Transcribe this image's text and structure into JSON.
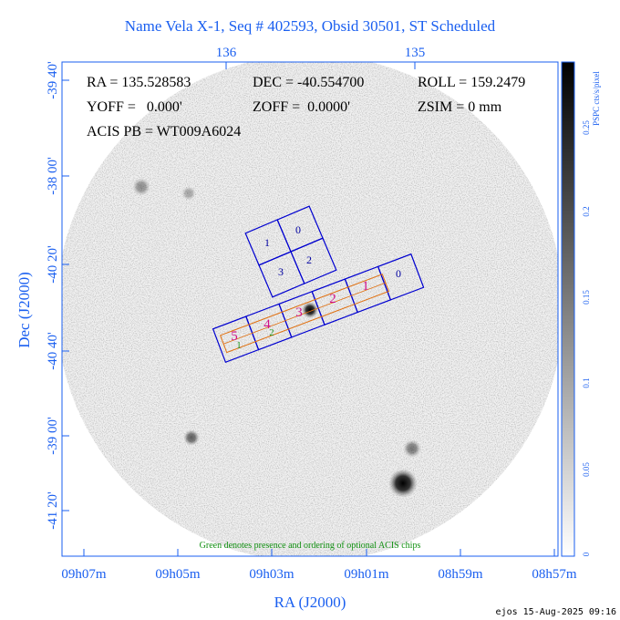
{
  "title": "Name Vela X-1, Seq # 402593, Obsid 30501, ST Scheduled",
  "top_axis": {
    "ticks": [
      "136",
      "135"
    ]
  },
  "left_axis": {
    "label": "Dec (J2000)",
    "ticks": [
      "-39 40'",
      "-38 00'",
      "-40 20'",
      "-40 40'",
      "-39 00'",
      "-41 20'"
    ]
  },
  "bottom_axis": {
    "label": "RA (J2000)",
    "ticks": [
      "09h07m",
      "09h05m",
      "09h03m",
      "09h01m",
      "08h59m",
      "08h57m"
    ]
  },
  "info": {
    "ra": "RA = 135.528583",
    "dec": "DEC = -40.554700",
    "roll": "ROLL = 159.2479",
    "yoff": "YOFF =   0.000'",
    "zoff": "ZOFF =  0.0000'",
    "zsim": "ZSIM = 0 mm",
    "acis_pb": "ACIS PB = WT009A6024"
  },
  "acis_i": {
    "chips": [
      "1",
      "0",
      "3",
      "2"
    ]
  },
  "acis_s": {
    "chips": [
      "5",
      "4",
      "3",
      "2",
      "1",
      "0"
    ],
    "optional": [
      "1",
      "2"
    ]
  },
  "colorbar": {
    "label": "PSPC cts/s/pixel",
    "ticks": [
      "0.25",
      "0.2",
      "0.15",
      "0.1",
      "0.05",
      "0"
    ]
  },
  "note": "Green denotes presence and ordering of optional ACIS chips",
  "footer": "ejos 15-Aug-2025 09:16"
}
